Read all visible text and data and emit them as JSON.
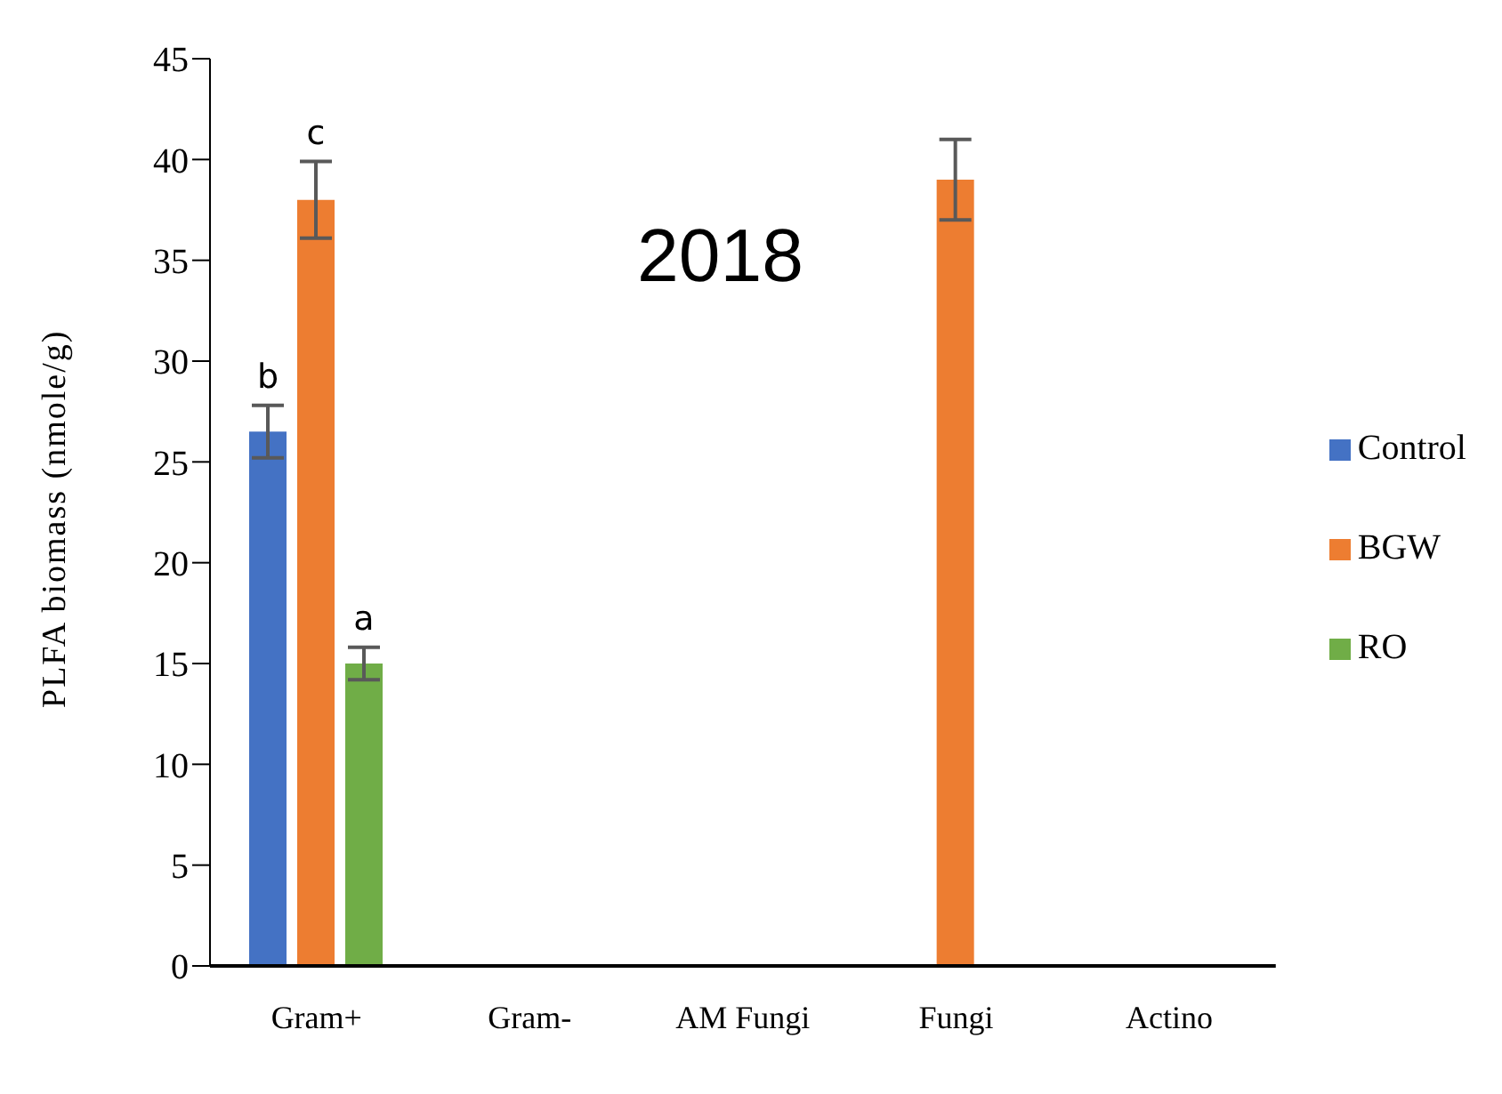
{
  "chart_data": {
    "type": "bar",
    "title": "2018",
    "ylabel": "PLFA biomass (nmole/g)",
    "categories": [
      "Gram+",
      "Gram-",
      "AM Fungi",
      "Fungi",
      "Actino"
    ],
    "series": [
      {
        "name": "Control",
        "color": "#4472c4",
        "values": [
          26.5,
          0,
          0,
          0,
          0
        ],
        "errors": [
          1.3,
          null,
          null,
          null,
          null
        ],
        "value_labels": [
          "b",
          null,
          null,
          null,
          null
        ]
      },
      {
        "name": "BGW",
        "color": "#ed7d31",
        "values": [
          38,
          0,
          0,
          39,
          0
        ],
        "errors": [
          1.9,
          null,
          null,
          2,
          null
        ],
        "value_labels": [
          "c",
          null,
          null,
          null,
          null
        ]
      },
      {
        "name": "RO",
        "color": "#70ad47",
        "values": [
          15,
          0,
          0,
          0,
          0
        ],
        "errors": [
          0.8,
          null,
          null,
          null,
          null
        ],
        "value_labels": [
          "a",
          null,
          null,
          null,
          null
        ]
      }
    ],
    "ylim": [
      0,
      45
    ],
    "yticks": [
      0,
      5,
      10,
      15,
      20,
      25,
      30,
      35,
      40,
      45
    ],
    "grid": false,
    "legend": "right"
  }
}
